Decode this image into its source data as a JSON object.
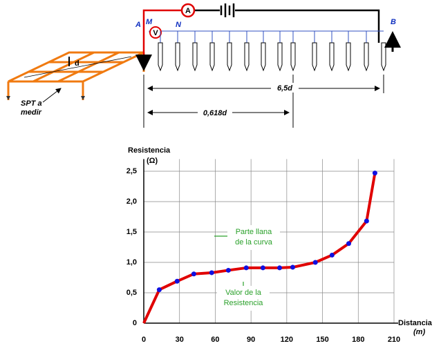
{
  "diagram": {
    "labels": {
      "a": "A",
      "m": "M",
      "n": "N",
      "b": "B",
      "d": "d",
      "ammeter": "A",
      "voltmeter": "V",
      "spt": [
        "SPT a",
        "medir"
      ],
      "dist_total": "6,5d",
      "dist_ratio": "0,618d"
    }
  },
  "chart_data": {
    "type": "line",
    "y_label": [
      "Resistencia",
      "(Ω)"
    ],
    "x_label": [
      "Distancia",
      "(m)"
    ],
    "x": [
      0,
      13,
      28,
      42,
      57,
      71,
      86,
      100,
      114,
      125,
      144,
      158,
      172,
      187,
      194
    ],
    "series": [
      {
        "type": "line",
        "color": "#e00000",
        "values": [
          0,
          0.55,
          0.69,
          0.81,
          0.83,
          0.87,
          0.91,
          0.91,
          0.91,
          0.92,
          1.0,
          1.12,
          1.31,
          1.68,
          2.47
        ]
      },
      {
        "type": "scatter",
        "color": "#1010e0",
        "values": [
          null,
          0.55,
          0.69,
          0.81,
          0.83,
          0.87,
          0.91,
          0.91,
          0.91,
          0.92,
          1.0,
          1.12,
          1.31,
          1.68,
          2.47
        ]
      }
    ],
    "xlim": [
      0,
      210
    ],
    "xticks": [
      0,
      30,
      60,
      90,
      120,
      150,
      180,
      210
    ],
    "ylim": [
      0,
      2.7
    ],
    "yticks": [
      0,
      {
        "value": 0.5,
        "label": "0,5"
      },
      {
        "value": 1,
        "label": "1,0"
      },
      {
        "value": 1.5,
        "label": "1,5"
      },
      {
        "value": 2,
        "label": "2,0"
      },
      {
        "value": 2.5,
        "label": "2,5"
      }
    ],
    "grid": true,
    "annotations": [
      {
        "lines": [
          "Parte llana",
          "de la curva"
        ],
        "color": "#2aa02a"
      },
      {
        "lines": [
          "Valor de la",
          "Resistencia"
        ],
        "color": "#2aa02a"
      }
    ]
  }
}
